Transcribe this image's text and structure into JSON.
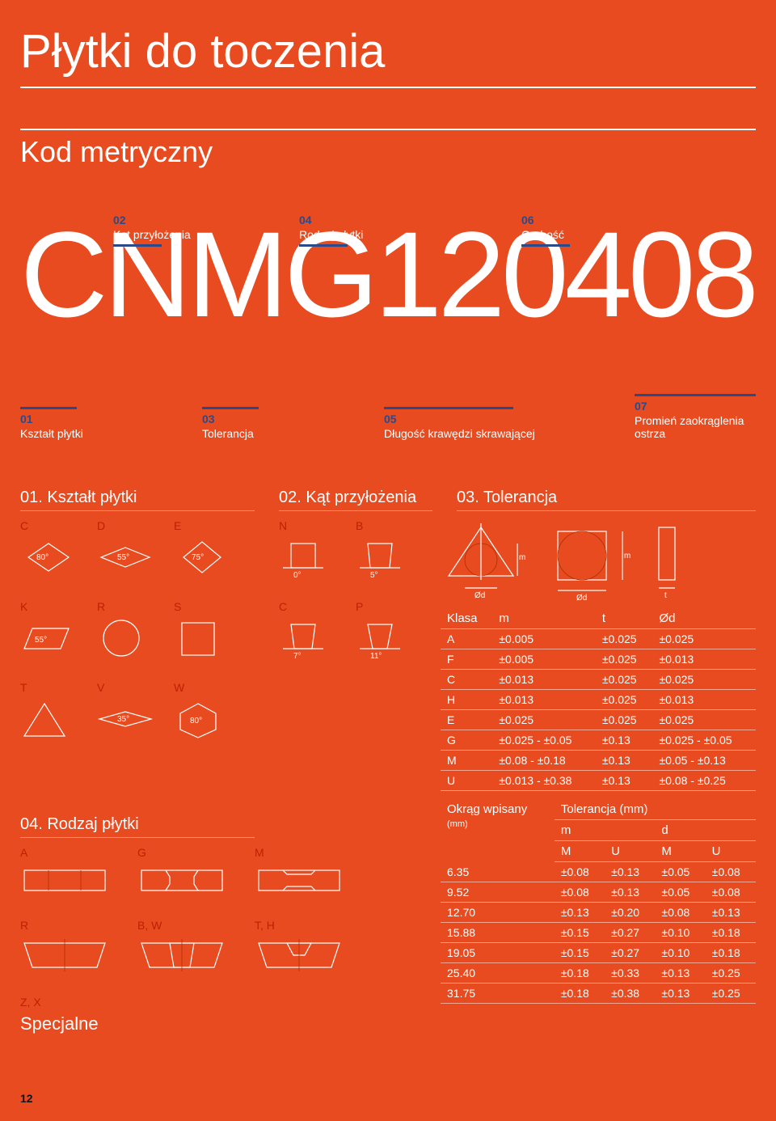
{
  "page": {
    "title": "Płytki do toczenia",
    "subtitle": "Kod metryczny",
    "big_code": "CNMG120408",
    "pagenum": "12"
  },
  "top_labels": [
    {
      "num": "02",
      "txt": "Kąt przyłożenia"
    },
    {
      "num": "04",
      "txt": "Rodzaj płytki"
    },
    {
      "num": "06",
      "txt": "Grubość"
    }
  ],
  "bottom_labels": [
    {
      "num": "01",
      "txt": "Kształt płytki"
    },
    {
      "num": "03",
      "txt": "Tolerancja"
    },
    {
      "num": "05",
      "txt": "Długość krawędzi skrawającej"
    },
    {
      "num": "07",
      "txt": "Promień zaokrąglenia ostrza"
    }
  ],
  "sections": {
    "s01": "01. Kształt płytki",
    "s02": "02. Kąt przyłożenia",
    "s03": "03. Tolerancja",
    "s04": "04. Rodzaj płytki"
  },
  "shapes_row1": [
    "C",
    "D",
    "E",
    "N",
    "B"
  ],
  "shape_angles_row1": {
    "C": "80°",
    "D": "55°",
    "E": "75°",
    "N": "0°",
    "B": "5°"
  },
  "shapes_row2": [
    "K",
    "R",
    "S",
    "C",
    "P"
  ],
  "shape_angles_row2": {
    "K": "55°",
    "C": "7°",
    "P": "11°"
  },
  "shapes_row3": [
    "T",
    "V",
    "W"
  ],
  "shape_angles_row3": {
    "V": "35°",
    "W": "80°"
  },
  "rodzaj_row1": [
    "A",
    "G",
    "M"
  ],
  "rodzaj_row2": [
    "R",
    "B, W",
    "T, H"
  ],
  "rodzaj_row3_label": "Z, X",
  "specjalne": "Specjalne",
  "tol_diag_labels": {
    "m": "m",
    "od": "Ød",
    "t": "t"
  },
  "klasa_table": {
    "headers": [
      "Klasa",
      "m",
      "t",
      "Ød"
    ],
    "rows": [
      [
        "A",
        "±0.005",
        "±0.025",
        "±0.025"
      ],
      [
        "F",
        "±0.005",
        "±0.025",
        "±0.013"
      ],
      [
        "C",
        "±0.013",
        "±0.025",
        "±0.025"
      ],
      [
        "H",
        "±0.013",
        "±0.025",
        "±0.013"
      ],
      [
        "E",
        "±0.025",
        "±0.025",
        "±0.025"
      ],
      [
        "G",
        "±0.025 - ±0.05",
        "±0.13",
        "±0.025 - ±0.05"
      ],
      [
        "M",
        "±0.08 - ±0.18",
        "±0.13",
        "±0.05 - ±0.13"
      ],
      [
        "U",
        "±0.013 - ±0.38",
        "±0.13",
        "±0.08 - ±0.25"
      ]
    ]
  },
  "okrag_table": {
    "corner_label": "Okrąg wpisany",
    "corner_sub": "(mm)",
    "group_header": "Tolerancja (mm)",
    "sub1": [
      "m",
      "d"
    ],
    "sub2": [
      "M",
      "U",
      "M",
      "U"
    ],
    "rows": [
      [
        "6.35",
        "±0.08",
        "±0.13",
        "±0.05",
        "±0.08"
      ],
      [
        "9.52",
        "±0.08",
        "±0.13",
        "±0.05",
        "±0.08"
      ],
      [
        "12.70",
        "±0.13",
        "±0.20",
        "±0.08",
        "±0.13"
      ],
      [
        "15.88",
        "±0.15",
        "±0.27",
        "±0.10",
        "±0.18"
      ],
      [
        "19.05",
        "±0.15",
        "±0.27",
        "±0.10",
        "±0.18"
      ],
      [
        "25.40",
        "±0.18",
        "±0.33",
        "±0.13",
        "±0.25"
      ],
      [
        "31.75",
        "±0.18",
        "±0.38",
        "±0.13",
        "±0.25"
      ]
    ]
  },
  "colors": {
    "bg": "#e84b1f",
    "text": "#ffffff",
    "accent": "#2a4a8a",
    "shape_label": "#bb2200"
  }
}
